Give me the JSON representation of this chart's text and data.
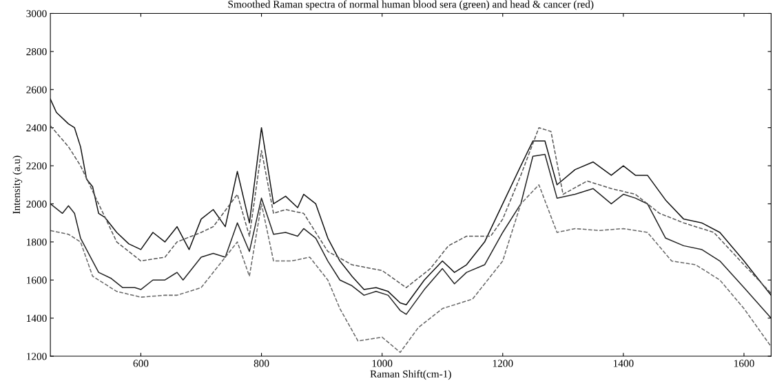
{
  "chart_data": {
    "type": "line",
    "title": "Smoothed Raman spectra of normal human blood sera (green) and head & cancer (red)",
    "xlabel": "Raman Shift(cm-1)",
    "ylabel": "Intensity (a.u)",
    "xlim": [
      450,
      1645
    ],
    "ylim": [
      1200,
      3000
    ],
    "xticks": [
      600,
      800,
      1000,
      1200,
      1400,
      1600
    ],
    "yticks": [
      1200,
      1400,
      1600,
      1800,
      2000,
      2200,
      2400,
      2600,
      2800,
      3000
    ],
    "grid": false,
    "marker": "none",
    "series": [
      {
        "color": "#111111",
        "line_style": "solid",
        "x": [
          450,
          460,
          480,
          490,
          500,
          510,
          520,
          530,
          540,
          560,
          580,
          600,
          620,
          640,
          660,
          680,
          700,
          720,
          740,
          760,
          780,
          800,
          820,
          840,
          860,
          870,
          890,
          910,
          930,
          950,
          970,
          990,
          1010,
          1030,
          1040,
          1070,
          1100,
          1120,
          1140,
          1170,
          1200,
          1230,
          1250,
          1270,
          1290,
          1320,
          1350,
          1380,
          1400,
          1420,
          1440,
          1470,
          1500,
          1530,
          1560,
          1600,
          1620,
          1645
        ],
        "values": [
          2550,
          2480,
          2420,
          2400,
          2300,
          2130,
          2090,
          1950,
          1930,
          1850,
          1790,
          1760,
          1850,
          1800,
          1880,
          1760,
          1920,
          1970,
          1880,
          2170,
          1900,
          2400,
          2000,
          2040,
          1980,
          2050,
          2000,
          1820,
          1700,
          1620,
          1550,
          1560,
          1540,
          1480,
          1470,
          1600,
          1700,
          1640,
          1680,
          1800,
          2000,
          2200,
          2330,
          2330,
          2100,
          2180,
          2220,
          2150,
          2200,
          2150,
          2150,
          2020,
          1920,
          1900,
          1850,
          1700,
          1620,
          1520
        ]
      },
      {
        "color": "#222222",
        "line_style": "solid",
        "x": [
          450,
          470,
          480,
          490,
          500,
          520,
          530,
          550,
          570,
          590,
          600,
          620,
          640,
          660,
          670,
          700,
          720,
          740,
          760,
          780,
          800,
          820,
          840,
          860,
          870,
          890,
          910,
          930,
          950,
          970,
          990,
          1010,
          1030,
          1040,
          1070,
          1100,
          1120,
          1140,
          1170,
          1200,
          1230,
          1250,
          1270,
          1290,
          1320,
          1350,
          1380,
          1400,
          1420,
          1440,
          1470,
          1500,
          1530,
          1560,
          1600,
          1645
        ],
        "values": [
          2000,
          1950,
          1990,
          1950,
          1820,
          1700,
          1640,
          1610,
          1560,
          1560,
          1550,
          1600,
          1600,
          1640,
          1600,
          1720,
          1740,
          1720,
          1900,
          1750,
          2030,
          1840,
          1850,
          1830,
          1870,
          1820,
          1700,
          1600,
          1570,
          1520,
          1540,
          1520,
          1440,
          1420,
          1550,
          1660,
          1580,
          1640,
          1680,
          1850,
          2000,
          2250,
          2260,
          2030,
          2050,
          2080,
          2000,
          2050,
          2030,
          2000,
          1820,
          1780,
          1760,
          1700,
          1560,
          1400
        ]
      },
      {
        "color": "#555555",
        "line_style": "dashed",
        "x": [
          450,
          480,
          500,
          530,
          560,
          600,
          640,
          660,
          700,
          720,
          760,
          780,
          800,
          820,
          840,
          870,
          910,
          950,
          1000,
          1040,
          1080,
          1110,
          1140,
          1180,
          1200,
          1230,
          1260,
          1280,
          1300,
          1340,
          1380,
          1420,
          1460,
          1500,
          1550,
          1600,
          1645
        ],
        "values": [
          2410,
          2300,
          2200,
          2000,
          1800,
          1700,
          1720,
          1800,
          1850,
          1880,
          2050,
          1830,
          2280,
          1950,
          1970,
          1950,
          1750,
          1680,
          1650,
          1560,
          1660,
          1780,
          1830,
          1830,
          1920,
          2150,
          2400,
          2380,
          2050,
          2120,
          2080,
          2050,
          1950,
          1900,
          1850,
          1680,
          1530
        ]
      },
      {
        "color": "#666666",
        "line_style": "dashed",
        "x": [
          450,
          480,
          500,
          520,
          560,
          600,
          640,
          660,
          700,
          760,
          780,
          800,
          820,
          850,
          880,
          910,
          930,
          960,
          1000,
          1030,
          1060,
          1100,
          1150,
          1200,
          1230,
          1260,
          1290,
          1320,
          1360,
          1400,
          1440,
          1480,
          1520,
          1560,
          1600,
          1645
        ],
        "values": [
          1860,
          1840,
          1800,
          1620,
          1540,
          1510,
          1520,
          1520,
          1560,
          1800,
          1620,
          2000,
          1700,
          1700,
          1720,
          1600,
          1450,
          1280,
          1300,
          1220,
          1350,
          1450,
          1500,
          1700,
          2000,
          2100,
          1850,
          1870,
          1860,
          1870,
          1850,
          1700,
          1680,
          1600,
          1450,
          1250
        ]
      }
    ]
  }
}
